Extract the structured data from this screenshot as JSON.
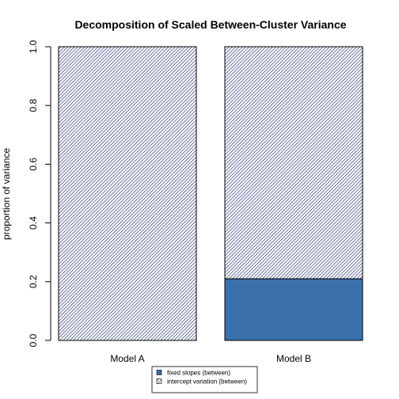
{
  "chart_data": {
    "type": "bar",
    "stacked": true,
    "title": "Decomposition of Scaled Between-Cluster Variance",
    "xlabel": "",
    "ylabel": "proportion of variance",
    "ylim": [
      0,
      1
    ],
    "yticks": [
      "0.0",
      "0.2",
      "0.4",
      "0.6",
      "0.8",
      "1.0"
    ],
    "categories": [
      "Model A",
      "Model B"
    ],
    "series": [
      {
        "name": "fixed slopes (between)",
        "values": [
          0.0,
          0.21
        ],
        "color": "#3b70ad",
        "pattern": "solid"
      },
      {
        "name": "intercept variation (between)",
        "values": [
          1.0,
          0.79
        ],
        "color": "#2a3a78",
        "pattern": "hatched"
      }
    ],
    "legend_position": "bottom-center"
  }
}
